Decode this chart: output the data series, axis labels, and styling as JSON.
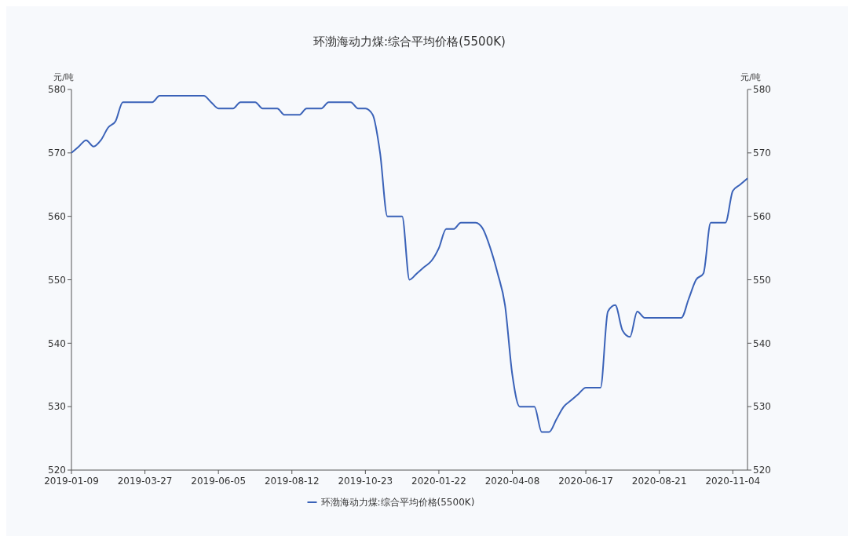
{
  "chart_data": {
    "type": "line",
    "title": "环渤海动力煤:综合平均价格(5500K)",
    "categories": [
      "2019-01-09",
      null,
      null,
      null,
      null,
      null,
      null,
      null,
      null,
      null,
      "2019-03-27",
      null,
      null,
      null,
      null,
      null,
      null,
      null,
      null,
      null,
      "2019-06-05",
      null,
      null,
      null,
      null,
      null,
      null,
      null,
      null,
      null,
      "2019-08-12",
      null,
      null,
      null,
      null,
      null,
      null,
      null,
      null,
      null,
      "2019-10-23",
      null,
      null,
      null,
      null,
      null,
      null,
      null,
      null,
      null,
      "2020-01-22",
      null,
      null,
      null,
      null,
      null,
      null,
      null,
      null,
      null,
      "2020-04-08",
      null,
      null,
      null,
      null,
      null,
      null,
      null,
      null,
      null,
      "2020-06-17",
      null,
      null,
      null,
      null,
      null,
      null,
      null,
      null,
      null,
      "2020-08-21",
      null,
      null,
      null,
      null,
      null,
      null,
      null,
      null,
      null,
      "2020-11-04",
      null,
      null
    ],
    "series": [
      {
        "name": "环渤海动力煤:综合平均价格(5500K)",
        "color": "#3a62b8",
        "values": [
          570,
          571,
          572,
          571,
          572,
          574,
          575,
          578,
          578,
          578,
          578,
          578,
          579,
          579,
          579,
          579,
          579,
          579,
          579,
          578,
          577,
          577,
          577,
          578,
          578,
          578,
          577,
          577,
          577,
          576,
          576,
          576,
          577,
          577,
          577,
          578,
          578,
          578,
          578,
          577,
          577,
          576,
          570,
          560,
          560,
          560,
          550,
          551,
          552,
          553,
          555,
          558,
          558,
          559,
          559,
          559,
          558,
          555,
          551,
          546,
          535,
          530,
          530,
          530,
          526,
          526,
          528,
          530,
          531,
          532,
          533,
          533,
          533,
          545,
          546,
          542,
          541,
          545,
          544,
          544,
          544,
          544,
          544,
          544,
          547,
          550,
          551,
          559,
          559,
          559,
          564,
          565,
          566
        ]
      }
    ],
    "ylabel": "元/吨",
    "y2label": "元/吨",
    "ylim": [
      520,
      580
    ],
    "yticks": [
      520,
      530,
      540,
      550,
      560,
      570,
      580
    ],
    "y2lim": [
      520,
      580
    ],
    "y2ticks": [
      520,
      530,
      540,
      550,
      560,
      570,
      580
    ],
    "legend": "bottom",
    "grid": false
  }
}
